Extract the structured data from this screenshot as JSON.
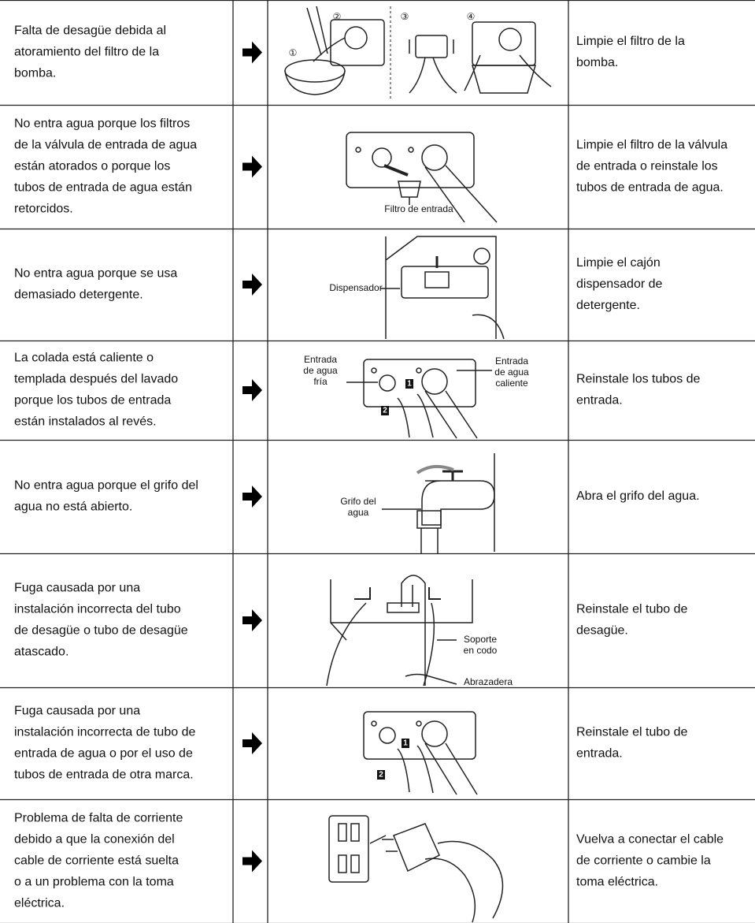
{
  "rows": [
    {
      "cause": [
        "Falta de desagüe debida al",
        "atoramiento del filtro de la",
        "bomba."
      ],
      "labels": [
        [
          "①"
        ],
        [
          "②"
        ],
        [
          "③"
        ],
        [
          "④"
        ]
      ],
      "solution": [
        "Limpie el filtro de la",
        "bomba."
      ]
    },
    {
      "cause": [
        "No entra agua porque los filtros",
        "de la válvula de entrada de agua",
        "están atorados o porque los",
        "tubos de entrada de agua están",
        "retorcidos."
      ],
      "labels": [
        [
          "Filtro de entrada"
        ]
      ],
      "solution": [
        "Limpie el filtro de la válvula",
        "de entrada o reinstale los",
        "tubos de entrada de agua."
      ]
    },
    {
      "cause": [
        "No entra agua porque se usa",
        "demasiado detergente."
      ],
      "labels": [
        [
          "Dispensador"
        ]
      ],
      "solution": [
        "Limpie el cajón",
        "dispensador de",
        "detergente."
      ]
    },
    {
      "cause": [
        "La colada está caliente o",
        "templada después del lavado",
        "porque los tubos de entrada",
        "están instalados al revés."
      ],
      "labels": [
        [
          "Entrada",
          "de agua",
          "fría"
        ],
        [
          "Entrada",
          "de agua",
          "caliente"
        ],
        [
          "1"
        ],
        [
          "2"
        ]
      ],
      "solution": [
        "Reinstale los tubos de",
        "entrada."
      ]
    },
    {
      "cause": [
        "No entra agua porque el grifo del",
        "agua no está abierto."
      ],
      "labels": [
        [
          "Grifo del",
          "agua"
        ]
      ],
      "solution": [
        "Abra el grifo del agua."
      ]
    },
    {
      "cause": [
        "Fuga causada por una",
        "instalación incorrecta del tubo",
        "de desagüe o tubo de desagüe",
        "atascado."
      ],
      "labels": [
        [
          "Soporte",
          "en codo"
        ],
        [
          "Abrazadera"
        ]
      ],
      "solution": [
        "Reinstale el tubo de",
        "desagüe."
      ]
    },
    {
      "cause": [
        "Fuga causada por una",
        "instalación incorrecta de tubo de",
        "entrada de agua o por el uso de",
        "tubos de entrada de otra marca."
      ],
      "labels": [
        [
          "1"
        ],
        [
          "2"
        ]
      ],
      "solution": [
        "Reinstale el tubo de",
        "entrada."
      ]
    },
    {
      "cause": [
        "Problema de falta de corriente",
        "debido a que la conexión del",
        "cable de corriente está suelta",
        "o a un problema con la toma",
        "eléctrica."
      ],
      "labels": [],
      "solution": [
        "Vuelva a conectar el cable",
        "de corriente o cambie la",
        "toma eléctrica."
      ]
    }
  ]
}
